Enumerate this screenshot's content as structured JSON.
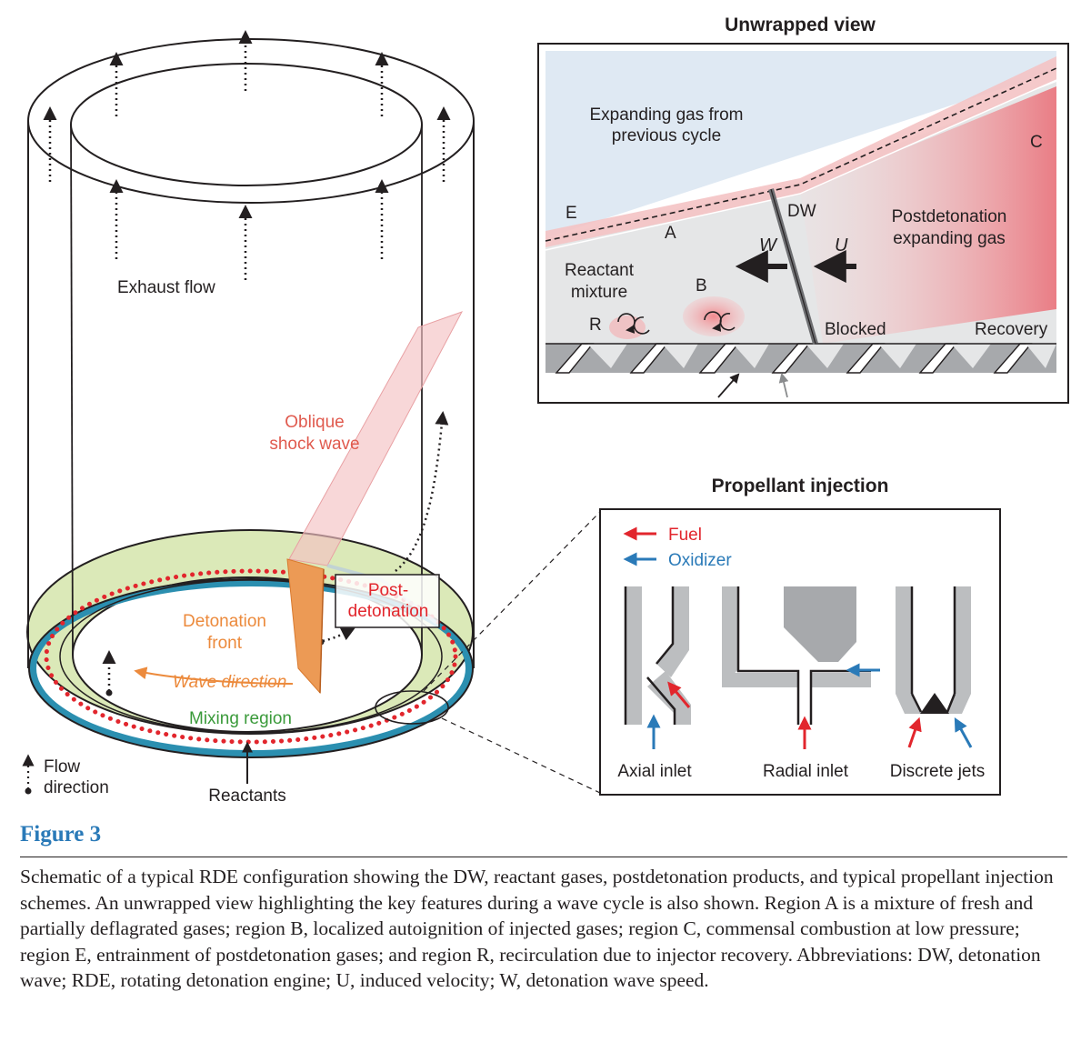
{
  "diagram": {
    "unwrapped_view": {
      "title": "Unwrapped view",
      "labels": {
        "expanding_gas": [
          "Expanding gas from",
          "previous cycle"
        ],
        "region_e": "E",
        "region_a": "A",
        "region_b": "B",
        "region_c": "C",
        "region_r": "R",
        "dw": "DW",
        "w": "W",
        "u": "U",
        "reactant_mixture": [
          "Reactant",
          "mixture"
        ],
        "postdetonation": [
          "Postdetonation",
          "expanding gas"
        ],
        "blocked": "Blocked",
        "recovery": "Recovery"
      }
    },
    "engine": {
      "exhaust_flow": "Exhaust flow",
      "oblique_shock": [
        "Oblique",
        "shock wave"
      ],
      "post_detonation": [
        "Post-",
        "detonation"
      ],
      "detonation_front": [
        "Detonation",
        "front"
      ],
      "wave_direction": "Wave direction",
      "mixing_region": "Mixing region",
      "reactants": "Reactants",
      "flow_direction": [
        "Flow",
        "direction"
      ]
    },
    "propellant_injection": {
      "title": "Propellant injection",
      "legend": [
        {
          "label": "Fuel",
          "color": "#e2262d"
        },
        {
          "label": "Oxidizer",
          "color": "#2a7ab8"
        }
      ],
      "inlets": [
        "Axial inlet",
        "Radial inlet",
        "Discrete jets"
      ]
    }
  },
  "caption": {
    "title": "Figure 3",
    "text": "Schematic of a typical RDE configuration showing the DW, reactant gases, postdetonation products, and typical propellant injection schemes. An unwrapped view highlighting the key features during a wave cycle is also shown. Region A is a mixture of fresh and partially deflagrated gases; region B, localized autoignition of injected gases; region C, commensal combustion at low pressure; region E, entrainment of postdetonation gases; and region R, recirculation due to injector recovery. Abbreviations: DW, detonation wave; RDE, rotating detonation engine; U, induced velocity; W, detonation wave speed."
  }
}
